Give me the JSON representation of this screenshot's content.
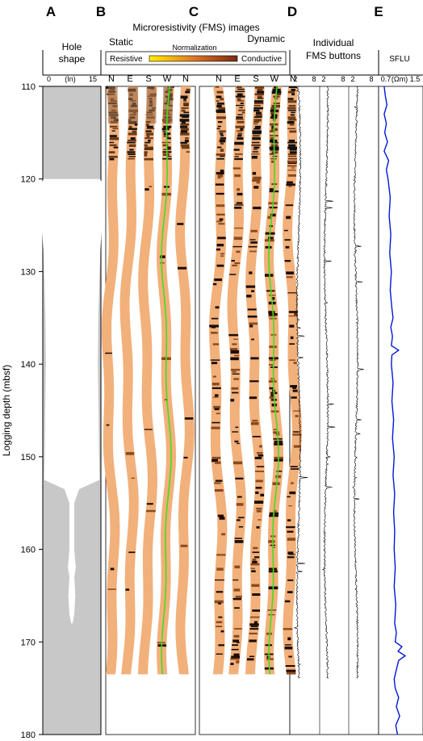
{
  "panel_letters": [
    "A",
    "B",
    "C",
    "D",
    "E"
  ],
  "fms_title": "Microresistivity (FMS) images",
  "hole_shape_title": [
    "Hole",
    "shape"
  ],
  "static_label": "Static",
  "dynamic_label": "Dynamic",
  "normalization_label": "Normalization",
  "resistive_label": "Resistive",
  "conductive_label": "Conductive",
  "buttons_title": [
    "Individual",
    "FMS buttons"
  ],
  "sflu_title": "SFLU",
  "colors": {
    "hole_gray": "#c8c8c8",
    "pad": "#f2b07a",
    "curve_green": "#44dd22",
    "sflu_blue": "#0018d8",
    "scale_start": "#ffee00",
    "scale_mid": "#e07828",
    "scale_end": "#7a2a10"
  },
  "chart_data": [
    {
      "type": "line",
      "panel": "A",
      "title": "Hole shape",
      "xlabel": "(in)",
      "xlim": [
        0,
        15
      ],
      "x_tick_labels": [
        "0",
        "(In)",
        "15"
      ],
      "ylabel": "Logging depth (mbsf)",
      "ylim": [
        110,
        180
      ],
      "y_ticks": [
        110,
        120,
        130,
        140,
        150,
        160,
        170,
        180
      ],
      "hole_profile": {
        "depth": [
          120.0,
          120.5,
          123,
          126,
          130,
          135,
          140,
          145,
          150,
          152.5,
          153.5,
          155,
          160,
          162,
          163,
          165,
          167,
          168
        ],
        "diameter_in": [
          11.5,
          12.5,
          12.3,
          12.0,
          11.3,
          10.8,
          10.6,
          10.9,
          11.1,
          11.3,
          3.0,
          1.0,
          1.0,
          1.6,
          1.0,
          1.4,
          1.0,
          0.3
        ]
      }
    },
    {
      "type": "image",
      "panel": "B",
      "title": "Static",
      "pad_labels": [
        "N",
        "E",
        "S",
        "W",
        "N"
      ],
      "depth_range": [
        110,
        173.5
      ]
    },
    {
      "type": "image",
      "panel": "C",
      "title": "Dynamic",
      "pad_labels": [
        "N",
        "E",
        "S",
        "W",
        "N"
      ],
      "depth_range": [
        110,
        173.5
      ]
    },
    {
      "type": "line",
      "panel": "D",
      "title": "Individual FMS buttons",
      "x_tick_labels": [
        "2",
        "8",
        "2",
        "8",
        "2",
        "8"
      ],
      "depth_range": [
        110,
        174
      ]
    },
    {
      "type": "line",
      "panel": "E",
      "title": "SFLU",
      "xlabel": "(Ωm)",
      "xlim": [
        0.7,
        1.5
      ],
      "x_tick_labels": [
        "0.7",
        "(Ωm)",
        "1.5"
      ],
      "series": [
        {
          "depth": [
            110,
            111,
            112,
            113,
            114,
            115,
            116,
            117,
            118,
            119,
            120,
            122,
            124,
            126,
            128,
            130,
            132,
            134,
            135,
            136,
            137,
            138,
            138.5,
            139,
            140,
            142,
            144,
            146,
            148,
            150,
            152,
            154,
            156,
            158,
            160,
            162,
            164,
            166,
            168,
            169,
            170,
            170.5,
            171,
            171.5,
            172,
            173,
            174,
            175,
            176,
            177,
            178,
            179,
            180
          ],
          "resistivity": [
            0.8,
            0.82,
            0.85,
            0.8,
            0.84,
            0.81,
            0.86,
            0.8,
            0.88,
            0.84,
            0.87,
            0.91,
            0.89,
            0.92,
            0.9,
            0.93,
            0.91,
            0.94,
            0.96,
            0.92,
            0.95,
            0.93,
            1.06,
            0.94,
            0.93,
            0.96,
            0.94,
            0.97,
            0.95,
            0.98,
            0.96,
            0.99,
            0.97,
            0.99,
            0.98,
            1.0,
            0.98,
            1.01,
            0.99,
            1.02,
            1.0,
            1.12,
            1.05,
            1.18,
            1.06,
            1.02,
            0.98,
            1.0,
            1.06,
            1.02,
            1.08,
            1.01,
            1.04
          ]
        }
      ]
    }
  ]
}
